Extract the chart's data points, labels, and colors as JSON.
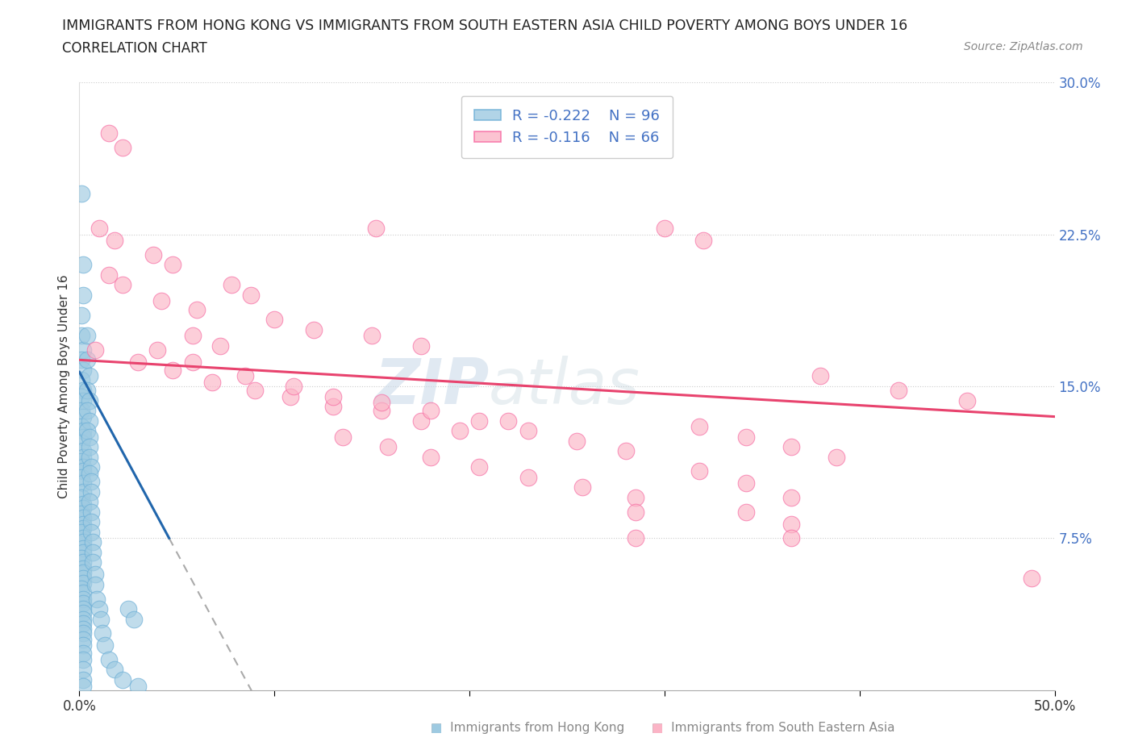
{
  "title": "IMMIGRANTS FROM HONG KONG VS IMMIGRANTS FROM SOUTH EASTERN ASIA CHILD POVERTY AMONG BOYS UNDER 16",
  "subtitle": "CORRELATION CHART",
  "source": "Source: ZipAtlas.com",
  "ylabel": "Child Poverty Among Boys Under 16",
  "xlim": [
    0.0,
    0.5
  ],
  "ylim": [
    0.0,
    0.3
  ],
  "xticks": [
    0.0,
    0.1,
    0.2,
    0.3,
    0.4,
    0.5
  ],
  "yticks": [
    0.0,
    0.075,
    0.15,
    0.225,
    0.3
  ],
  "xticklabels": [
    "0.0%",
    "",
    "",
    "",
    "",
    "50.0%"
  ],
  "yticklabels": [
    "",
    "7.5%",
    "15.0%",
    "22.5%",
    "30.0%"
  ],
  "ytick_color": "#4472c4",
  "hk_color": "#9ecae1",
  "hk_edge_color": "#6baed6",
  "sea_color": "#fbb4c6",
  "sea_edge_color": "#f768a1",
  "hk_line_color": "#2166ac",
  "sea_line_color": "#e8436e",
  "hk_R": -0.222,
  "hk_N": 96,
  "sea_R": -0.116,
  "sea_N": 66,
  "legend_hk": "Immigrants from Hong Kong",
  "legend_sea": "Immigrants from South Eastern Asia",
  "hk_trend_x0": 0.0,
  "hk_trend_y0": 0.157,
  "hk_trend_x1": 0.046,
  "hk_trend_y1": 0.075,
  "sea_trend_x0": 0.0,
  "sea_trend_x1": 0.5,
  "sea_trend_y0": 0.163,
  "sea_trend_y1": 0.135,
  "hk_scatter": [
    [
      0.001,
      0.245
    ],
    [
      0.002,
      0.21
    ],
    [
      0.002,
      0.195
    ],
    [
      0.001,
      0.185
    ],
    [
      0.001,
      0.175
    ],
    [
      0.002,
      0.168
    ],
    [
      0.001,
      0.163
    ],
    [
      0.002,
      0.158
    ],
    [
      0.001,
      0.153
    ],
    [
      0.002,
      0.148
    ],
    [
      0.001,
      0.145
    ],
    [
      0.002,
      0.143
    ],
    [
      0.001,
      0.138
    ],
    [
      0.002,
      0.135
    ],
    [
      0.001,
      0.13
    ],
    [
      0.002,
      0.128
    ],
    [
      0.002,
      0.125
    ],
    [
      0.001,
      0.122
    ],
    [
      0.002,
      0.118
    ],
    [
      0.002,
      0.115
    ],
    [
      0.001,
      0.113
    ],
    [
      0.002,
      0.11
    ],
    [
      0.002,
      0.108
    ],
    [
      0.001,
      0.105
    ],
    [
      0.002,
      0.102
    ],
    [
      0.002,
      0.098
    ],
    [
      0.001,
      0.095
    ],
    [
      0.002,
      0.092
    ],
    [
      0.002,
      0.09
    ],
    [
      0.001,
      0.087
    ],
    [
      0.002,
      0.085
    ],
    [
      0.002,
      0.082
    ],
    [
      0.002,
      0.08
    ],
    [
      0.001,
      0.078
    ],
    [
      0.002,
      0.075
    ],
    [
      0.002,
      0.073
    ],
    [
      0.002,
      0.07
    ],
    [
      0.002,
      0.068
    ],
    [
      0.001,
      0.065
    ],
    [
      0.002,
      0.063
    ],
    [
      0.002,
      0.06
    ],
    [
      0.002,
      0.058
    ],
    [
      0.002,
      0.055
    ],
    [
      0.002,
      0.053
    ],
    [
      0.001,
      0.05
    ],
    [
      0.002,
      0.048
    ],
    [
      0.002,
      0.045
    ],
    [
      0.002,
      0.043
    ],
    [
      0.002,
      0.04
    ],
    [
      0.002,
      0.038
    ],
    [
      0.002,
      0.035
    ],
    [
      0.002,
      0.033
    ],
    [
      0.002,
      0.03
    ],
    [
      0.002,
      0.028
    ],
    [
      0.002,
      0.025
    ],
    [
      0.002,
      0.022
    ],
    [
      0.002,
      0.018
    ],
    [
      0.002,
      0.015
    ],
    [
      0.002,
      0.01
    ],
    [
      0.002,
      0.005
    ],
    [
      0.002,
      0.002
    ],
    [
      0.004,
      0.175
    ],
    [
      0.004,
      0.163
    ],
    [
      0.005,
      0.155
    ],
    [
      0.004,
      0.148
    ],
    [
      0.005,
      0.143
    ],
    [
      0.004,
      0.138
    ],
    [
      0.005,
      0.133
    ],
    [
      0.004,
      0.128
    ],
    [
      0.005,
      0.125
    ],
    [
      0.005,
      0.12
    ],
    [
      0.005,
      0.115
    ],
    [
      0.006,
      0.11
    ],
    [
      0.005,
      0.107
    ],
    [
      0.006,
      0.103
    ],
    [
      0.006,
      0.098
    ],
    [
      0.005,
      0.093
    ],
    [
      0.006,
      0.088
    ],
    [
      0.006,
      0.083
    ],
    [
      0.006,
      0.078
    ],
    [
      0.007,
      0.073
    ],
    [
      0.007,
      0.068
    ],
    [
      0.007,
      0.063
    ],
    [
      0.008,
      0.057
    ],
    [
      0.008,
      0.052
    ],
    [
      0.009,
      0.045
    ],
    [
      0.01,
      0.04
    ],
    [
      0.011,
      0.035
    ],
    [
      0.012,
      0.028
    ],
    [
      0.013,
      0.022
    ],
    [
      0.015,
      0.015
    ],
    [
      0.018,
      0.01
    ],
    [
      0.022,
      0.005
    ],
    [
      0.025,
      0.04
    ],
    [
      0.028,
      0.035
    ],
    [
      0.03,
      0.002
    ]
  ],
  "sea_scatter": [
    [
      0.015,
      0.275
    ],
    [
      0.022,
      0.268
    ],
    [
      0.01,
      0.228
    ],
    [
      0.018,
      0.222
    ],
    [
      0.038,
      0.215
    ],
    [
      0.048,
      0.21
    ],
    [
      0.015,
      0.205
    ],
    [
      0.022,
      0.2
    ],
    [
      0.152,
      0.228
    ],
    [
      0.3,
      0.228
    ],
    [
      0.32,
      0.222
    ],
    [
      0.078,
      0.2
    ],
    [
      0.088,
      0.195
    ],
    [
      0.042,
      0.192
    ],
    [
      0.06,
      0.188
    ],
    [
      0.1,
      0.183
    ],
    [
      0.12,
      0.178
    ],
    [
      0.15,
      0.175
    ],
    [
      0.175,
      0.17
    ],
    [
      0.008,
      0.168
    ],
    [
      0.03,
      0.162
    ],
    [
      0.048,
      0.158
    ],
    [
      0.068,
      0.152
    ],
    [
      0.09,
      0.148
    ],
    [
      0.108,
      0.145
    ],
    [
      0.13,
      0.14
    ],
    [
      0.155,
      0.138
    ],
    [
      0.175,
      0.133
    ],
    [
      0.195,
      0.128
    ],
    [
      0.22,
      0.133
    ],
    [
      0.058,
      0.175
    ],
    [
      0.072,
      0.17
    ],
    [
      0.04,
      0.168
    ],
    [
      0.058,
      0.162
    ],
    [
      0.085,
      0.155
    ],
    [
      0.11,
      0.15
    ],
    [
      0.13,
      0.145
    ],
    [
      0.155,
      0.142
    ],
    [
      0.18,
      0.138
    ],
    [
      0.205,
      0.133
    ],
    [
      0.23,
      0.128
    ],
    [
      0.255,
      0.123
    ],
    [
      0.28,
      0.118
    ],
    [
      0.135,
      0.125
    ],
    [
      0.158,
      0.12
    ],
    [
      0.18,
      0.115
    ],
    [
      0.205,
      0.11
    ],
    [
      0.23,
      0.105
    ],
    [
      0.258,
      0.1
    ],
    [
      0.285,
      0.095
    ],
    [
      0.38,
      0.155
    ],
    [
      0.42,
      0.148
    ],
    [
      0.455,
      0.143
    ],
    [
      0.318,
      0.13
    ],
    [
      0.342,
      0.125
    ],
    [
      0.365,
      0.12
    ],
    [
      0.388,
      0.115
    ],
    [
      0.318,
      0.108
    ],
    [
      0.342,
      0.102
    ],
    [
      0.365,
      0.095
    ],
    [
      0.285,
      0.088
    ],
    [
      0.342,
      0.088
    ],
    [
      0.365,
      0.082
    ],
    [
      0.285,
      0.075
    ],
    [
      0.365,
      0.075
    ],
    [
      0.488,
      0.055
    ]
  ]
}
